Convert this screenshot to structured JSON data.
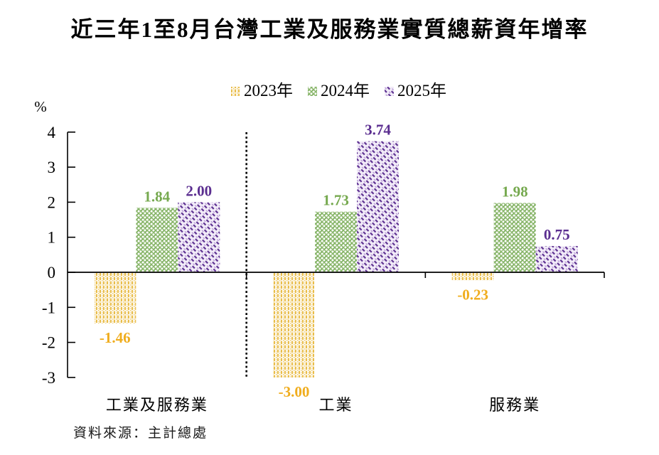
{
  "title": "近三年1至8月台灣工業及服務業實質總薪資年增率",
  "source_note": "資料來源：主計總處",
  "chart_data": {
    "type": "bar",
    "title": "近三年1至8月台灣工業及服務業實質總薪資年增率",
    "categories": [
      "工業及服務業",
      "工業",
      "服務業"
    ],
    "series": [
      {
        "name": "2023年",
        "values": [
          -1.46,
          -3.0,
          -0.23
        ],
        "color": "#F0AD1E",
        "pattern": "vertical-dots",
        "pattern_colors": [
          "#E9BD4A",
          "#F5DC9B",
          "#FFFFFF"
        ]
      },
      {
        "name": "2024年",
        "values": [
          1.84,
          1.73,
          1.98
        ],
        "color": "#76A94F",
        "pattern": "circle-grid",
        "pattern_colors": [
          "#77AB55",
          "#A9C98F",
          "#FFFFFF"
        ]
      },
      {
        "name": "2025年",
        "values": [
          2.0,
          3.74,
          0.75
        ],
        "color": "#5B2E90",
        "pattern": "diagonal-dash",
        "pattern_colors": [
          "#5B2E90",
          "#B99BD6",
          "#F3EDF9"
        ]
      }
    ],
    "ylabel": "%",
    "ylim": [
      -3,
      4
    ],
    "yticks": [
      4,
      3,
      2,
      1,
      0,
      -1,
      -2,
      -3
    ],
    "grid": false,
    "legend_position": "top-center",
    "value_label_decimals": 2,
    "separator_after_category_index": 0,
    "axis_color": "#000000"
  }
}
